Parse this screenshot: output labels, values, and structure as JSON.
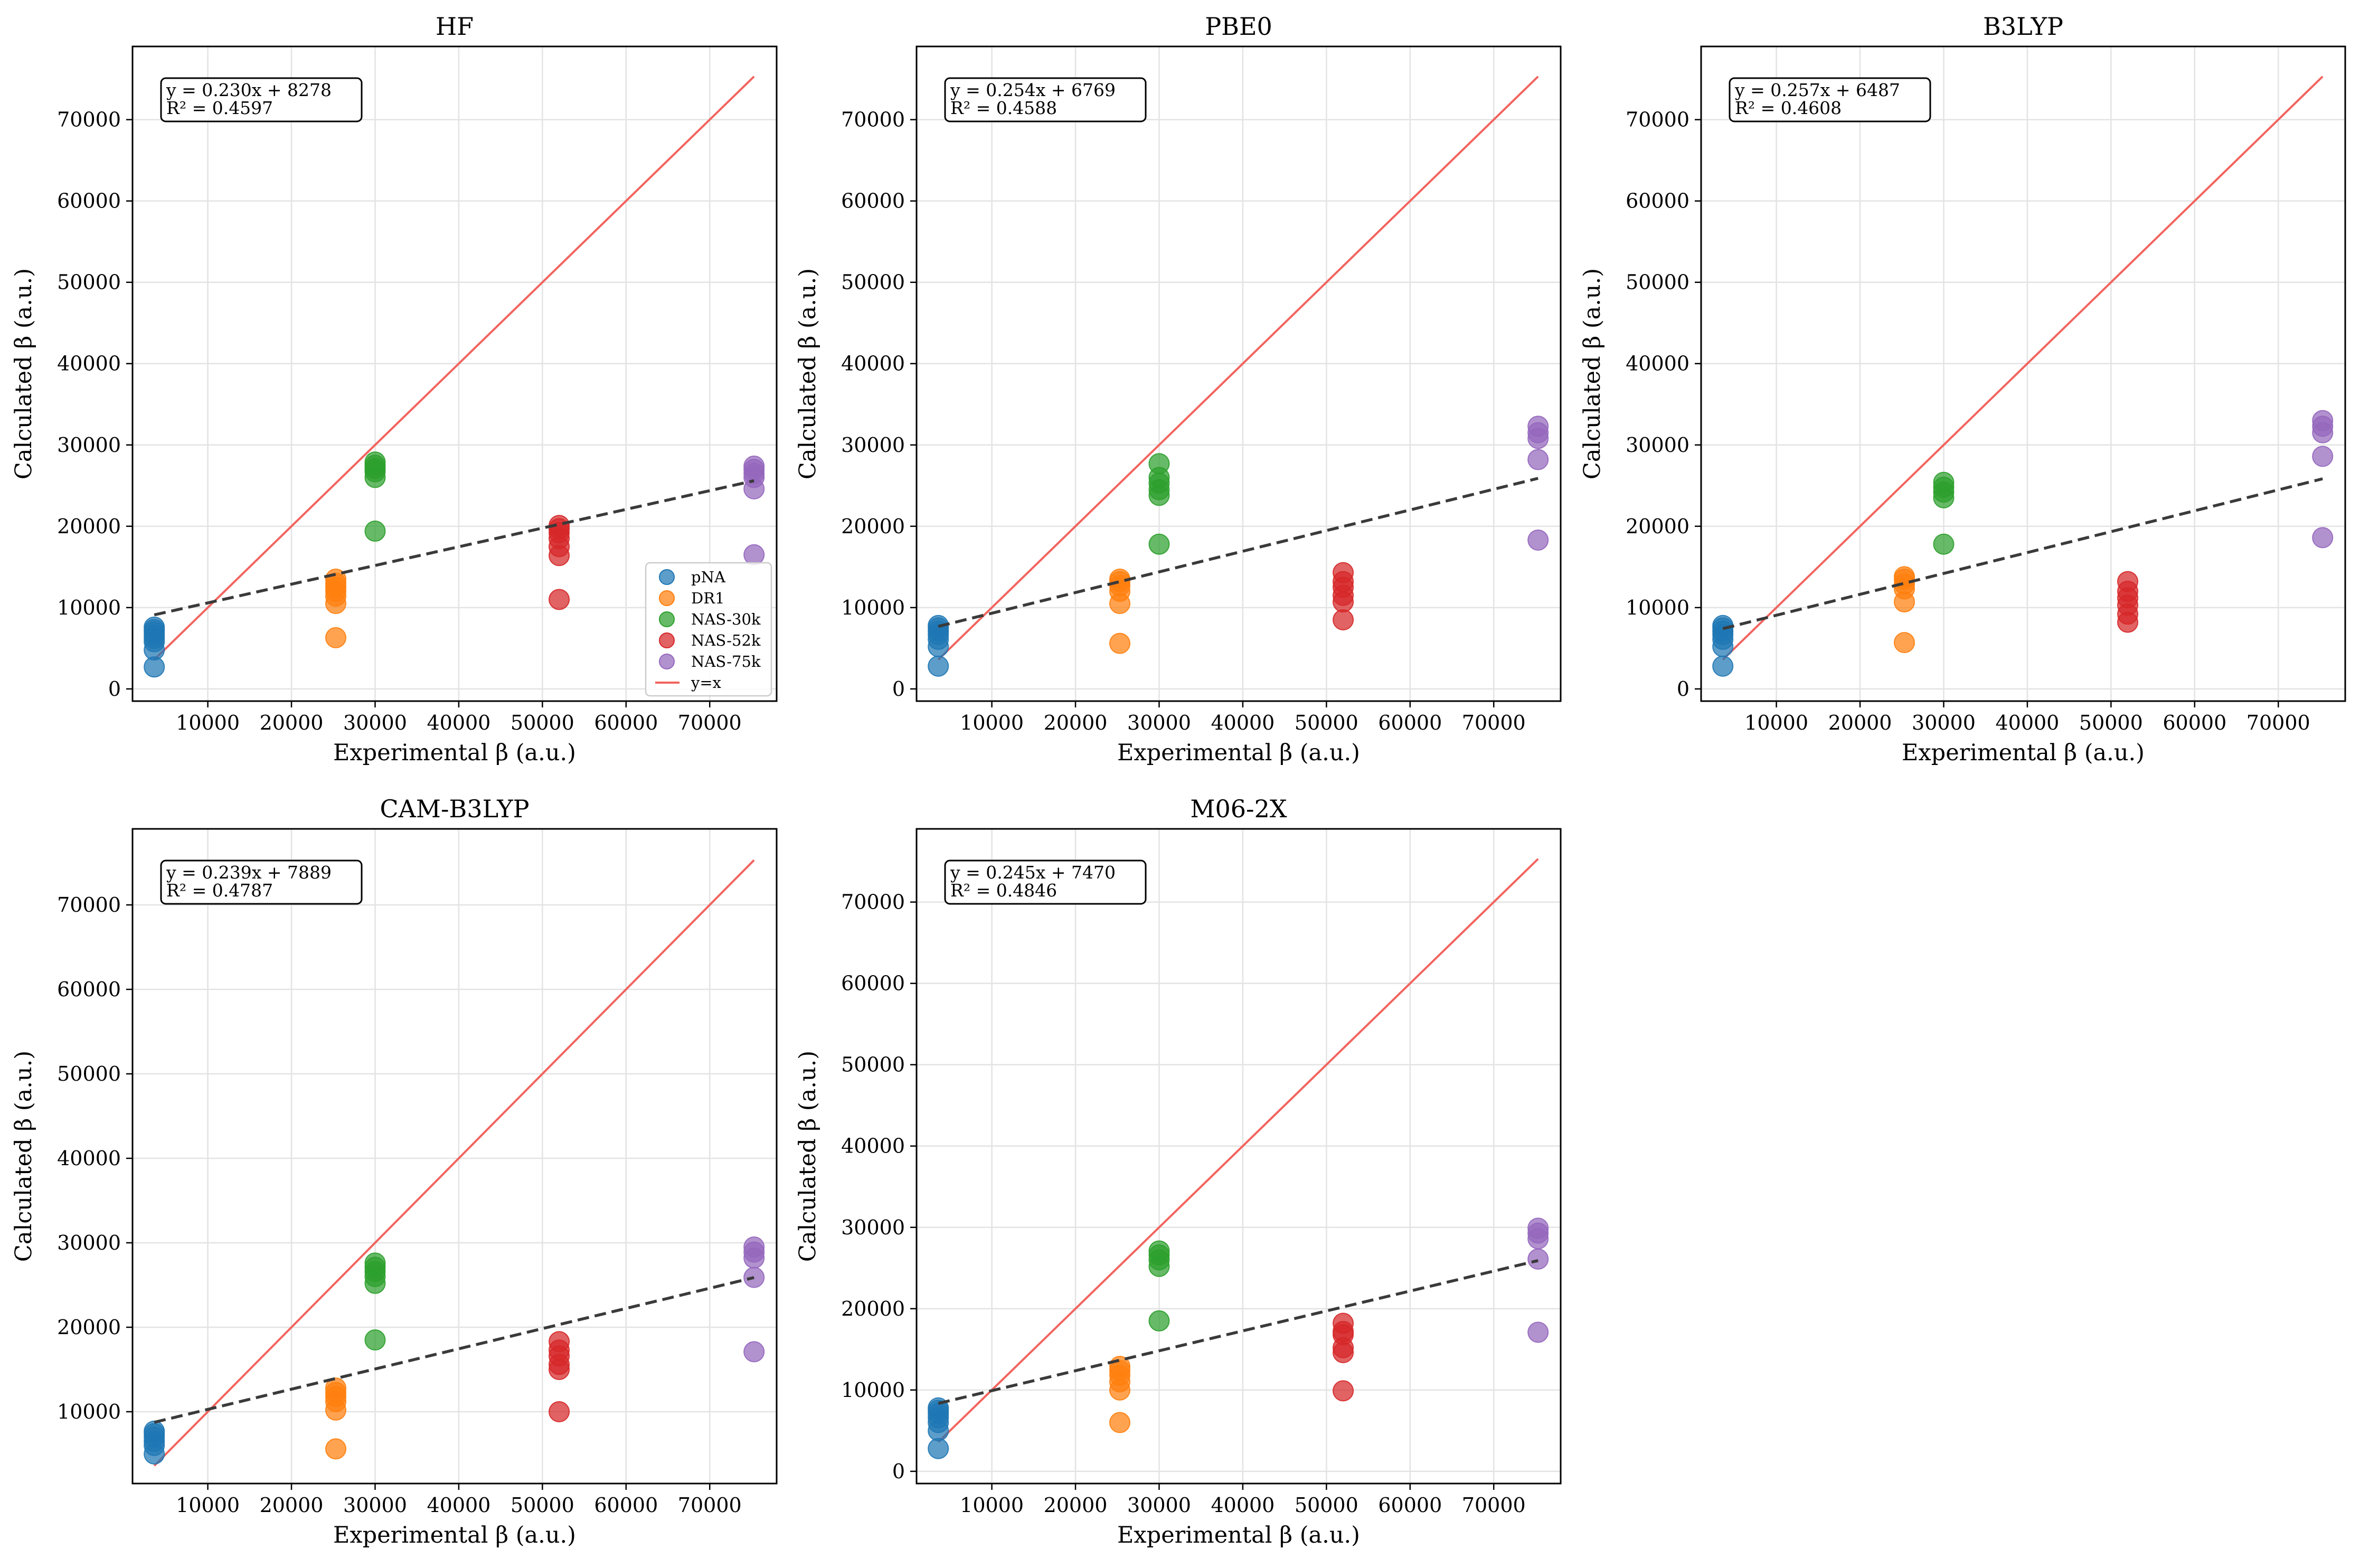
{
  "figure": {
    "series_colors": {
      "pNA": "#1f77b4",
      "DR1": "#ff7f0e",
      "NAS-30k": "#2ca02c",
      "NAS-52k": "#d62728",
      "NAS-75k": "#9467bd"
    },
    "identity_line_color": "#f2645f",
    "fit_line_color": "#3a3a3a",
    "legend": [
      "pNA",
      "DR1",
      "NAS-30k",
      "NAS-52k",
      "NAS-75k",
      "y=x"
    ]
  },
  "chart_data": [
    {
      "type": "scatter",
      "title": "HF",
      "xlabel": "Experimental β (a.u.)",
      "ylabel": "Calculated β (a.u.)",
      "xlim": [
        1000,
        78000
      ],
      "ylim": [
        -1500,
        79000
      ],
      "xticks": [
        10000,
        20000,
        30000,
        40000,
        50000,
        60000,
        70000
      ],
      "yticks": [
        0,
        10000,
        20000,
        30000,
        40000,
        50000,
        60000,
        70000
      ],
      "fit": {
        "slope": 0.23,
        "intercept": 8278,
        "label": "y = 0.230x + 8278",
        "r2_label": "R² = 0.4597"
      },
      "identity": {
        "label": "y=x",
        "range": [
          3600,
          75300
        ]
      },
      "legend_position": "lower-right",
      "series": [
        {
          "name": "pNA",
          "x": 3600,
          "y": [
            2700,
            4800,
            5800,
            6200,
            6600,
            7000,
            7300,
            7600
          ]
        },
        {
          "name": "DR1",
          "x": 25300,
          "y": [
            6300,
            10500,
            11400,
            12000,
            12500,
            13000,
            13500
          ]
        },
        {
          "name": "NAS-30k",
          "x": 30000,
          "y": [
            19400,
            26000,
            26700,
            27100,
            27500,
            27900
          ]
        },
        {
          "name": "NAS-52k",
          "x": 52000,
          "y": [
            11000,
            16400,
            17500,
            18500,
            19200,
            19700,
            20100
          ]
        },
        {
          "name": "NAS-75k",
          "x": 75300,
          "y": [
            16500,
            24600,
            26000,
            26500,
            27000,
            27400
          ]
        }
      ]
    },
    {
      "type": "scatter",
      "title": "PBE0",
      "xlabel": "Experimental β (a.u.)",
      "ylabel": "Calculated β (a.u.)",
      "xlim": [
        1000,
        78000
      ],
      "ylim": [
        -1500,
        79000
      ],
      "xticks": [
        10000,
        20000,
        30000,
        40000,
        50000,
        60000,
        70000
      ],
      "yticks": [
        0,
        10000,
        20000,
        30000,
        40000,
        50000,
        60000,
        70000
      ],
      "fit": {
        "slope": 0.254,
        "intercept": 6769,
        "label": "y = 0.254x + 6769",
        "r2_label": "R² = 0.4588"
      },
      "identity": {
        "label": "y=x",
        "range": [
          3600,
          75300
        ]
      },
      "series": [
        {
          "name": "pNA",
          "x": 3600,
          "y": [
            2800,
            5200,
            6100,
            6700,
            7100,
            7500,
            7800
          ]
        },
        {
          "name": "DR1",
          "x": 25300,
          "y": [
            5600,
            10500,
            12000,
            12700,
            13200,
            13500
          ]
        },
        {
          "name": "NAS-30k",
          "x": 30000,
          "y": [
            17800,
            23800,
            24500,
            25300,
            26000,
            27700
          ]
        },
        {
          "name": "NAS-52k",
          "x": 52000,
          "y": [
            8500,
            10700,
            11500,
            12500,
            13200,
            14300
          ]
        },
        {
          "name": "NAS-75k",
          "x": 75300,
          "y": [
            18300,
            28200,
            30800,
            31500,
            32300
          ]
        }
      ]
    },
    {
      "type": "scatter",
      "title": "B3LYP",
      "xlabel": "Experimental β (a.u.)",
      "ylabel": "Calculated β (a.u.)",
      "xlim": [
        1000,
        78000
      ],
      "ylim": [
        -1500,
        79000
      ],
      "xticks": [
        10000,
        20000,
        30000,
        40000,
        50000,
        60000,
        70000
      ],
      "yticks": [
        0,
        10000,
        20000,
        30000,
        40000,
        50000,
        60000,
        70000
      ],
      "fit": {
        "slope": 0.257,
        "intercept": 6487,
        "label": "y = 0.257x + 6487",
        "r2_label": "R² = 0.4608"
      },
      "identity": {
        "label": "y=x",
        "range": [
          3600,
          75300
        ]
      },
      "series": [
        {
          "name": "pNA",
          "x": 3600,
          "y": [
            2800,
            5200,
            6100,
            6700,
            7100,
            7500,
            7800
          ]
        },
        {
          "name": "DR1",
          "x": 25300,
          "y": [
            5700,
            10700,
            12300,
            12900,
            13500,
            13800
          ]
        },
        {
          "name": "NAS-30k",
          "x": 30000,
          "y": [
            17800,
            23500,
            24200,
            24800,
            25400
          ]
        },
        {
          "name": "NAS-52k",
          "x": 52000,
          "y": [
            8200,
            9200,
            10300,
            11200,
            12000,
            13200
          ]
        },
        {
          "name": "NAS-75k",
          "x": 75300,
          "y": [
            18600,
            28600,
            31500,
            32300,
            33000
          ]
        }
      ]
    },
    {
      "type": "scatter",
      "title": "CAM-B3LYP",
      "xlabel": "Experimental β (a.u.)",
      "ylabel": "Calculated β (a.u.)",
      "xlim": [
        1000,
        78000
      ],
      "ylim": [
        1500,
        79000
      ],
      "xticks": [
        10000,
        20000,
        30000,
        40000,
        50000,
        60000,
        70000
      ],
      "yticks": [
        10000,
        20000,
        30000,
        40000,
        50000,
        60000,
        70000
      ],
      "fit": {
        "slope": 0.239,
        "intercept": 7889,
        "label": "y = 0.239x + 7889",
        "r2_label": "R² = 0.4787"
      },
      "identity": {
        "label": "y=x",
        "range": [
          3600,
          75300
        ]
      },
      "series": [
        {
          "name": "pNA",
          "x": 3600,
          "y": [
            5000,
            6000,
            6500,
            7000,
            7400,
            7700
          ]
        },
        {
          "name": "DR1",
          "x": 25300,
          "y": [
            5600,
            10200,
            11200,
            11800,
            12300,
            12800
          ]
        },
        {
          "name": "NAS-30k",
          "x": 30000,
          "y": [
            18500,
            25200,
            26000,
            26600,
            27100,
            27600
          ]
        },
        {
          "name": "NAS-52k",
          "x": 52000,
          "y": [
            10000,
            15000,
            15600,
            16600,
            17300,
            18300
          ]
        },
        {
          "name": "NAS-75k",
          "x": 75300,
          "y": [
            17100,
            25900,
            28200,
            28900,
            29500
          ]
        }
      ]
    },
    {
      "type": "scatter",
      "title": "M06-2X",
      "xlabel": "Experimental β (a.u.)",
      "ylabel": "Calculated β (a.u.)",
      "xlim": [
        1000,
        78000
      ],
      "ylim": [
        -1500,
        79000
      ],
      "xticks": [
        10000,
        20000,
        30000,
        40000,
        50000,
        60000,
        70000
      ],
      "yticks": [
        0,
        10000,
        20000,
        30000,
        40000,
        50000,
        60000,
        70000
      ],
      "fit": {
        "slope": 0.245,
        "intercept": 7470,
        "label": "y = 0.245x + 7470",
        "r2_label": "R² = 0.4846"
      },
      "identity": {
        "label": "y=x",
        "range": [
          3600,
          75300
        ]
      },
      "series": [
        {
          "name": "pNA",
          "x": 3600,
          "y": [
            2800,
            5000,
            6000,
            6600,
            7100,
            7500,
            7800
          ]
        },
        {
          "name": "DR1",
          "x": 25300,
          "y": [
            6000,
            10000,
            11000,
            11800,
            12400,
            12900
          ]
        },
        {
          "name": "NAS-30k",
          "x": 30000,
          "y": [
            18500,
            25200,
            26000,
            26600,
            27100
          ]
        },
        {
          "name": "NAS-52k",
          "x": 52000,
          "y": [
            9900,
            14600,
            15200,
            16800,
            17200,
            18200
          ]
        },
        {
          "name": "NAS-75k",
          "x": 75300,
          "y": [
            17100,
            26100,
            28600,
            29300,
            29900
          ]
        }
      ]
    }
  ]
}
